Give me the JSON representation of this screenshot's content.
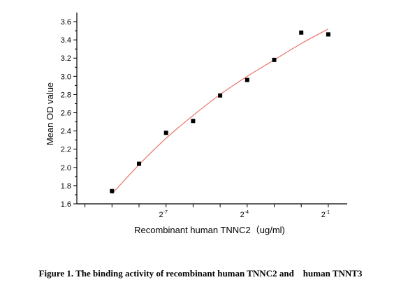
{
  "chart_data": {
    "type": "scatter",
    "xlabel": "Recombinant human TNNC2（ug/ml)",
    "ylabel": "Mean OD value",
    "x_scale": "log2",
    "xlim": [
      -10.3,
      -0.3
    ],
    "ylim": [
      1.6,
      3.7
    ],
    "y_ticks": [
      "1.6",
      "1.8",
      "2.0",
      "2.2",
      "2.4",
      "2.6",
      "2.8",
      "3.0",
      "3.2",
      "3.4",
      "3.6"
    ],
    "y_tick_values": [
      1.6,
      1.8,
      2.0,
      2.2,
      2.4,
      2.6,
      2.8,
      3.0,
      3.2,
      3.4,
      3.6
    ],
    "x_tick_labels": [
      {
        "base": "2",
        "exp": "-7",
        "value": -7
      },
      {
        "base": "2",
        "exp": "-4",
        "value": -4
      },
      {
        "base": "2",
        "exp": "-1",
        "value": -1
      }
    ],
    "x_minor_tick_values": [
      -10,
      -9,
      -8,
      -7,
      -6,
      -5,
      -4,
      -3,
      -2,
      -1
    ],
    "points": [
      {
        "x": -9,
        "y": 1.74
      },
      {
        "x": -8,
        "y": 2.04
      },
      {
        "x": -7,
        "y": 2.38
      },
      {
        "x": -6,
        "y": 2.51
      },
      {
        "x": -5,
        "y": 2.79
      },
      {
        "x": -4,
        "y": 2.96
      },
      {
        "x": -3,
        "y": 3.18
      },
      {
        "x": -2,
        "y": 3.48
      },
      {
        "x": -1,
        "y": 3.46
      }
    ],
    "fit_curve": {
      "color": "#e8736b",
      "x": [
        -9,
        -8,
        -7,
        -6,
        -5,
        -4,
        -3,
        -2,
        -1
      ],
      "y": [
        1.71,
        2.03,
        2.32,
        2.57,
        2.8,
        3.0,
        3.18,
        3.36,
        3.52
      ]
    },
    "marker_color": "#000000"
  },
  "caption": "Figure 1. The binding activity of recombinant human TNNC2 and    human TNNT3"
}
